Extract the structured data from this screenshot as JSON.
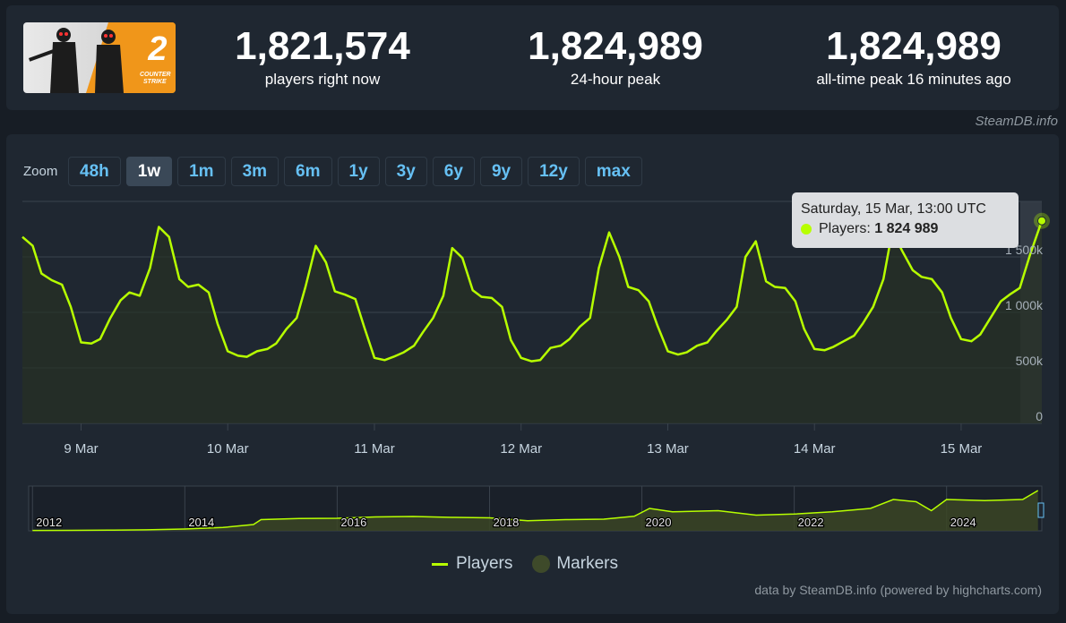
{
  "stats": [
    {
      "value": "1,821,574",
      "label": "players right now"
    },
    {
      "value": "1,824,989",
      "label": "24-hour peak"
    },
    {
      "value": "1,824,989",
      "label": "all-time peak 16 minutes ago"
    }
  ],
  "credit_top": "SteamDB.info",
  "zoom": {
    "label": "Zoom",
    "buttons": [
      "48h",
      "1w",
      "1m",
      "3m",
      "6m",
      "1y",
      "3y",
      "6y",
      "9y",
      "12y",
      "max"
    ],
    "active": "1w"
  },
  "tooltip": {
    "date": "Saturday, 15 Mar, 13:00 UTC",
    "series_label": "Players:",
    "value": "1 824 989"
  },
  "legend": {
    "players": "Players",
    "markers": "Markers"
  },
  "credit_bottom": "data by SteamDB.info (powered by highcharts.com)",
  "colors": {
    "line": "#b7ff00",
    "background": "#1f2731",
    "accent": "#66c0f4"
  },
  "chart_data": {
    "type": "line",
    "series": [
      {
        "name": "Players"
      }
    ],
    "ylim": [
      0,
      2000000
    ],
    "y_ticks": [
      "0",
      "500k",
      "1 000k",
      "1 500k"
    ],
    "y_tick_values": [
      0,
      500000,
      1000000,
      1500000
    ],
    "x_range": [
      8.6,
      15.55
    ],
    "x_ticks": [
      "9 Mar",
      "10 Mar",
      "11 Mar",
      "12 Mar",
      "13 Mar",
      "14 Mar",
      "15 Mar"
    ],
    "x_tick_values": [
      9,
      10,
      11,
      12,
      13,
      14,
      15
    ],
    "points": [
      [
        8.6,
        1680000
      ],
      [
        8.67,
        1600000
      ],
      [
        8.73,
        1350000
      ],
      [
        8.8,
        1290000
      ],
      [
        8.87,
        1250000
      ],
      [
        8.93,
        1050000
      ],
      [
        9.0,
        730000
      ],
      [
        9.07,
        720000
      ],
      [
        9.13,
        760000
      ],
      [
        9.2,
        950000
      ],
      [
        9.27,
        1110000
      ],
      [
        9.33,
        1180000
      ],
      [
        9.4,
        1150000
      ],
      [
        9.47,
        1400000
      ],
      [
        9.53,
        1770000
      ],
      [
        9.6,
        1680000
      ],
      [
        9.67,
        1300000
      ],
      [
        9.73,
        1230000
      ],
      [
        9.8,
        1250000
      ],
      [
        9.87,
        1180000
      ],
      [
        9.93,
        900000
      ],
      [
        10.0,
        650000
      ],
      [
        10.07,
        610000
      ],
      [
        10.13,
        600000
      ],
      [
        10.2,
        650000
      ],
      [
        10.27,
        670000
      ],
      [
        10.33,
        720000
      ],
      [
        10.4,
        850000
      ],
      [
        10.47,
        950000
      ],
      [
        10.53,
        1230000
      ],
      [
        10.6,
        1600000
      ],
      [
        10.67,
        1450000
      ],
      [
        10.73,
        1190000
      ],
      [
        10.8,
        1160000
      ],
      [
        10.87,
        1120000
      ],
      [
        10.93,
        870000
      ],
      [
        11.0,
        590000
      ],
      [
        11.07,
        570000
      ],
      [
        11.13,
        600000
      ],
      [
        11.2,
        640000
      ],
      [
        11.27,
        700000
      ],
      [
        11.33,
        820000
      ],
      [
        11.4,
        950000
      ],
      [
        11.47,
        1150000
      ],
      [
        11.53,
        1580000
      ],
      [
        11.6,
        1490000
      ],
      [
        11.67,
        1200000
      ],
      [
        11.73,
        1140000
      ],
      [
        11.8,
        1130000
      ],
      [
        11.87,
        1050000
      ],
      [
        11.93,
        750000
      ],
      [
        12.0,
        590000
      ],
      [
        12.07,
        560000
      ],
      [
        12.13,
        570000
      ],
      [
        12.2,
        680000
      ],
      [
        12.27,
        700000
      ],
      [
        12.33,
        760000
      ],
      [
        12.4,
        870000
      ],
      [
        12.47,
        950000
      ],
      [
        12.53,
        1400000
      ],
      [
        12.6,
        1720000
      ],
      [
        12.67,
        1500000
      ],
      [
        12.73,
        1230000
      ],
      [
        12.8,
        1200000
      ],
      [
        12.87,
        1100000
      ],
      [
        12.93,
        880000
      ],
      [
        13.0,
        650000
      ],
      [
        13.07,
        620000
      ],
      [
        13.13,
        640000
      ],
      [
        13.2,
        700000
      ],
      [
        13.27,
        730000
      ],
      [
        13.33,
        830000
      ],
      [
        13.4,
        930000
      ],
      [
        13.47,
        1050000
      ],
      [
        13.53,
        1500000
      ],
      [
        13.6,
        1640000
      ],
      [
        13.67,
        1280000
      ],
      [
        13.73,
        1230000
      ],
      [
        13.8,
        1220000
      ],
      [
        13.87,
        1100000
      ],
      [
        13.93,
        850000
      ],
      [
        14.0,
        670000
      ],
      [
        14.07,
        660000
      ],
      [
        14.13,
        690000
      ],
      [
        14.2,
        740000
      ],
      [
        14.27,
        790000
      ],
      [
        14.33,
        900000
      ],
      [
        14.4,
        1050000
      ],
      [
        14.47,
        1300000
      ],
      [
        14.53,
        1730000
      ],
      [
        14.6,
        1550000
      ],
      [
        14.67,
        1380000
      ],
      [
        14.73,
        1320000
      ],
      [
        14.8,
        1300000
      ],
      [
        14.87,
        1180000
      ],
      [
        14.93,
        950000
      ],
      [
        15.0,
        760000
      ],
      [
        15.07,
        740000
      ],
      [
        15.13,
        800000
      ],
      [
        15.2,
        950000
      ],
      [
        15.27,
        1100000
      ],
      [
        15.33,
        1160000
      ],
      [
        15.4,
        1220000
      ],
      [
        15.47,
        1520000
      ],
      [
        15.55,
        1824989
      ]
    ],
    "navigator": {
      "x_ticks": [
        "2012",
        "2014",
        "2016",
        "2018",
        "2020",
        "2022",
        "2024"
      ],
      "x_tick_values": [
        2012,
        2014,
        2016,
        2018,
        2020,
        2022,
        2024
      ],
      "x_range": [
        2011.95,
        2025.25
      ],
      "ylim": [
        0,
        2000000
      ],
      "points": [
        [
          2012.0,
          15000
        ],
        [
          2012.5,
          20000
        ],
        [
          2013.0,
          30000
        ],
        [
          2013.5,
          45000
        ],
        [
          2014.0,
          80000
        ],
        [
          2014.5,
          150000
        ],
        [
          2014.9,
          280000
        ],
        [
          2015.0,
          500000
        ],
        [
          2015.5,
          550000
        ],
        [
          2016.0,
          560000
        ],
        [
          2016.5,
          620000
        ],
        [
          2017.0,
          640000
        ],
        [
          2017.5,
          600000
        ],
        [
          2018.0,
          580000
        ],
        [
          2018.5,
          450000
        ],
        [
          2019.0,
          500000
        ],
        [
          2019.5,
          520000
        ],
        [
          2019.9,
          650000
        ],
        [
          2020.1,
          1000000
        ],
        [
          2020.4,
          850000
        ],
        [
          2021.0,
          900000
        ],
        [
          2021.5,
          700000
        ],
        [
          2022.0,
          750000
        ],
        [
          2022.5,
          850000
        ],
        [
          2023.0,
          1000000
        ],
        [
          2023.3,
          1400000
        ],
        [
          2023.6,
          1300000
        ],
        [
          2023.8,
          900000
        ],
        [
          2024.0,
          1400000
        ],
        [
          2024.5,
          1350000
        ],
        [
          2025.0,
          1400000
        ],
        [
          2025.2,
          1800000
        ]
      ]
    }
  }
}
